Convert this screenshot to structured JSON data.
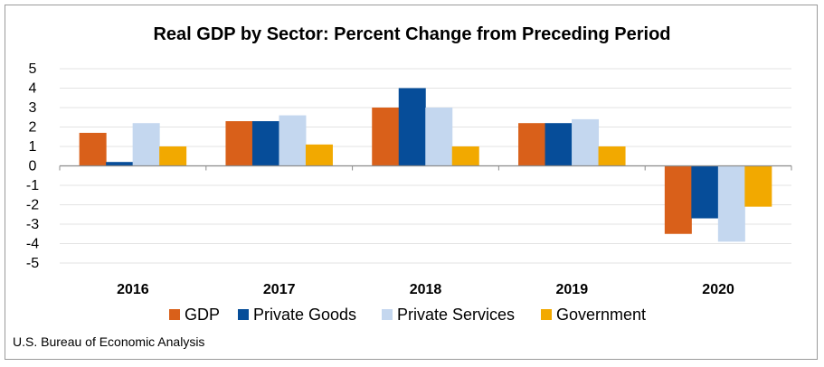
{
  "chart_data": {
    "type": "bar",
    "title": "Real GDP by Sector:  Percent Change from Preceding Period",
    "categories": [
      "2016",
      "2017",
      "2018",
      "2019",
      "2020"
    ],
    "series": [
      {
        "name": "GDP",
        "color": "#d9601a",
        "values": [
          1.7,
          2.3,
          3.0,
          2.2,
          -3.5
        ]
      },
      {
        "name": "Private Goods",
        "color": "#064d99",
        "values": [
          0.2,
          2.3,
          4.0,
          2.2,
          -2.7
        ]
      },
      {
        "name": "Private Services",
        "color": "#c4d7ef",
        "values": [
          2.2,
          2.6,
          3.0,
          2.4,
          -3.9
        ]
      },
      {
        "name": "Government",
        "color": "#f2a900",
        "values": [
          1.0,
          1.1,
          1.0,
          1.0,
          -2.1
        ]
      }
    ],
    "ylim": [
      -5,
      5
    ],
    "yticks": [
      5,
      4,
      3,
      2,
      1,
      0,
      -1,
      -2,
      -3,
      -4,
      -5
    ],
    "grid": true,
    "legend_position": "bottom"
  },
  "source": "U.S. Bureau of Economic Analysis"
}
